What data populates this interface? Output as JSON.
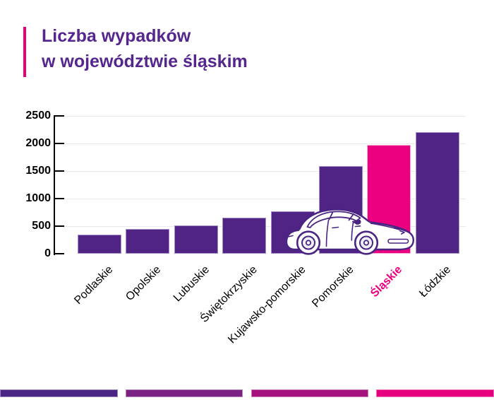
{
  "title": {
    "line1": "Liczba wypadków",
    "line2": "w województwie śląskim"
  },
  "colors": {
    "title_text": "#54268e",
    "accent_pink": "#e6007e",
    "bar_fill": "#4f2484",
    "bar_border": "#a78fcd",
    "highlight_fill": "#ec0080",
    "highlight_border": "#f4afd4",
    "axis": "#000000",
    "gridline": "#e9e9ed",
    "x_label_text": "#000000",
    "y_label_text": "#000000",
    "car_outline": "#4a2483",
    "footer_segments": [
      "#4b2583",
      "#7b2184",
      "#a5127f",
      "#e6007e"
    ]
  },
  "chart_data": {
    "type": "bar",
    "title": "Liczba wypadków w województwie śląskim",
    "categories": [
      "Podlaskie",
      "Opolskie",
      "Lubuskie",
      "Świętokrzyskie",
      "Kujawsko-pomorskie",
      "Pomorskie",
      "Śląskie",
      "Łódzkie"
    ],
    "values": [
      340,
      450,
      510,
      650,
      770,
      1590,
      1980,
      2210
    ],
    "highlighted_category": "Śląskie",
    "xlabel": "",
    "ylabel": "",
    "ylim": [
      0,
      2500
    ],
    "yticks": [
      "0",
      "500",
      "1000",
      "1500",
      "2000",
      "2500"
    ],
    "grid": true,
    "legend": false,
    "x_label_rotation_deg": -45
  },
  "decorations": {
    "car_icon": "white-car-side-view"
  }
}
